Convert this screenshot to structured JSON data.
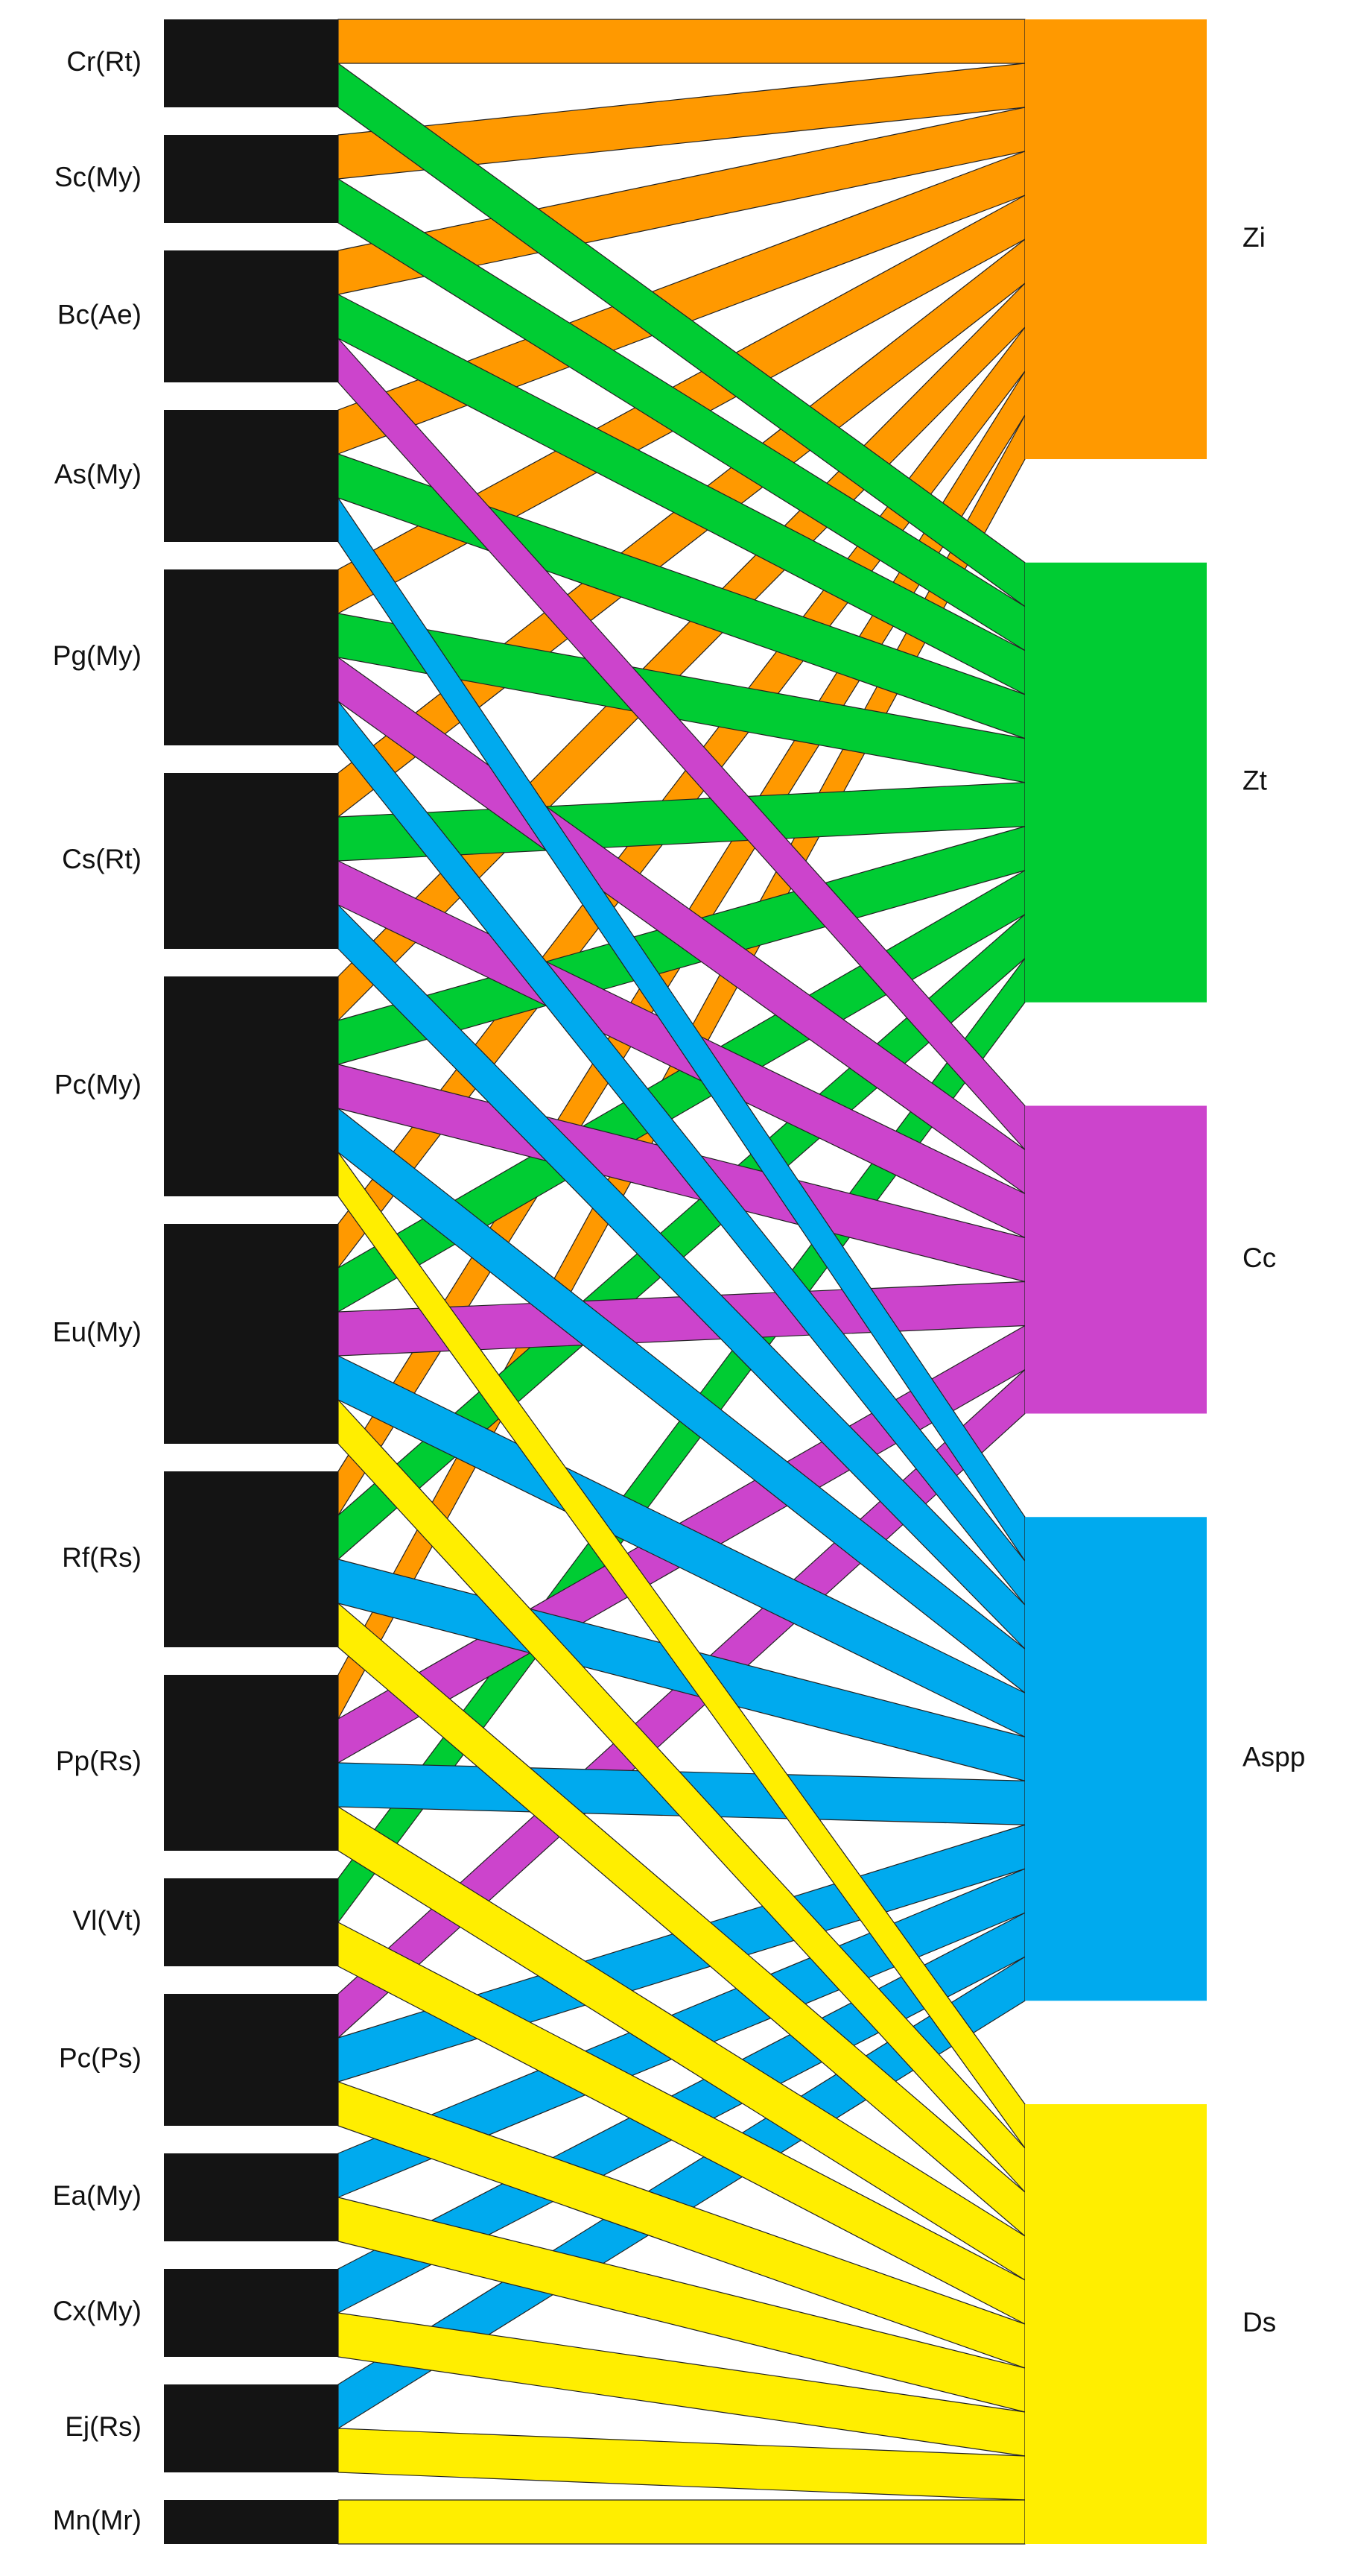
{
  "nodes": {
    "left": [
      "Cr(Rt)",
      "Sc(My)",
      "Bc(Ae)",
      "As(My)",
      "Pg(My)",
      "Cs(Rt)",
      "Pc(My)",
      "Eu(My)",
      "Rf(Rs)",
      "Pp(Rs)",
      "Vl(Vt)",
      "Pc(Ps)",
      "Ea(My)",
      "Cx(My)",
      "Ej(Rs)",
      "Mn(Mr)"
    ],
    "right": [
      {
        "label": "Zi",
        "color": "#ff9900"
      },
      {
        "label": "Zt",
        "color": "#00cc33"
      },
      {
        "label": "Cc",
        "color": "#cc44cc"
      },
      {
        "label": "Aspp",
        "color": "#00aaee"
      },
      {
        "label": "Ds",
        "color": "#ffee00"
      }
    ]
  },
  "links": [
    [
      "Cr(Rt)",
      "Zi"
    ],
    [
      "Cr(Rt)",
      "Zt"
    ],
    [
      "Sc(My)",
      "Zi"
    ],
    [
      "Sc(My)",
      "Zt"
    ],
    [
      "Bc(Ae)",
      "Zi"
    ],
    [
      "Bc(Ae)",
      "Zt"
    ],
    [
      "Bc(Ae)",
      "Cc"
    ],
    [
      "As(My)",
      "Zi"
    ],
    [
      "As(My)",
      "Zt"
    ],
    [
      "As(My)",
      "Aspp"
    ],
    [
      "Pg(My)",
      "Zi"
    ],
    [
      "Pg(My)",
      "Zt"
    ],
    [
      "Pg(My)",
      "Cc"
    ],
    [
      "Pg(My)",
      "Aspp"
    ],
    [
      "Cs(Rt)",
      "Zi"
    ],
    [
      "Cs(Rt)",
      "Zt"
    ],
    [
      "Cs(Rt)",
      "Cc"
    ],
    [
      "Cs(Rt)",
      "Aspp"
    ],
    [
      "Pc(My)",
      "Zi"
    ],
    [
      "Pc(My)",
      "Zt"
    ],
    [
      "Pc(My)",
      "Cc"
    ],
    [
      "Pc(My)",
      "Aspp"
    ],
    [
      "Pc(My)",
      "Ds"
    ],
    [
      "Eu(My)",
      "Zi"
    ],
    [
      "Eu(My)",
      "Zt"
    ],
    [
      "Eu(My)",
      "Cc"
    ],
    [
      "Eu(My)",
      "Aspp"
    ],
    [
      "Eu(My)",
      "Ds"
    ],
    [
      "Rf(Rs)",
      "Zi"
    ],
    [
      "Rf(Rs)",
      "Zt"
    ],
    [
      "Rf(Rs)",
      "Aspp"
    ],
    [
      "Rf(Rs)",
      "Ds"
    ],
    [
      "Pp(Rs)",
      "Zi"
    ],
    [
      "Pp(Rs)",
      "Cc"
    ],
    [
      "Pp(Rs)",
      "Aspp"
    ],
    [
      "Pp(Rs)",
      "Ds"
    ],
    [
      "Vl(Vt)",
      "Zt"
    ],
    [
      "Vl(Vt)",
      "Ds"
    ],
    [
      "Pc(Ps)",
      "Cc"
    ],
    [
      "Pc(Ps)",
      "Aspp"
    ],
    [
      "Pc(Ps)",
      "Ds"
    ],
    [
      "Ea(My)",
      "Aspp"
    ],
    [
      "Ea(My)",
      "Ds"
    ],
    [
      "Cx(My)",
      "Aspp"
    ],
    [
      "Cx(My)",
      "Ds"
    ],
    [
      "Ej(Rs)",
      "Aspp"
    ],
    [
      "Ej(Rs)",
      "Ds"
    ],
    [
      "Mn(Mr)",
      "Ds"
    ]
  ]
}
